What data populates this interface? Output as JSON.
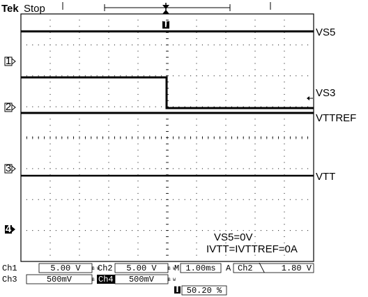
{
  "header": {
    "brand": "Tek",
    "state": "Stop"
  },
  "trigger_marker": "T",
  "channel_markers": [
    "1",
    "2",
    "3",
    "4"
  ],
  "trace_labels": {
    "vs5": "VS5",
    "vs3": "VS3",
    "vttref": "VTTREF",
    "vtt": "VTT"
  },
  "annotations": {
    "line1": "VS5=0V",
    "line2": "IVTT=IVTTREF=0A"
  },
  "status": {
    "ch1": {
      "name": "Ch1",
      "scale": "5.00 V",
      "bw": "B W"
    },
    "ch2": {
      "name": "Ch2",
      "scale": "5.00 V",
      "bw": "B W"
    },
    "ch3": {
      "name": "Ch3",
      "scale": "500mV",
      "bw": "B W"
    },
    "ch4": {
      "name": "Ch4",
      "scale": "500mV",
      "bw": "B W"
    },
    "timebase": {
      "prefix": "M",
      "value": "1.00ms"
    },
    "trigger": {
      "mode": "A",
      "source": "Ch2",
      "slope": "╲",
      "level": "1.80 V"
    },
    "position": {
      "icon": "T",
      "value": "50.20 %"
    }
  },
  "colors": {
    "background": "#ffffff",
    "grid": "#000000",
    "trace": "#000000"
  }
}
